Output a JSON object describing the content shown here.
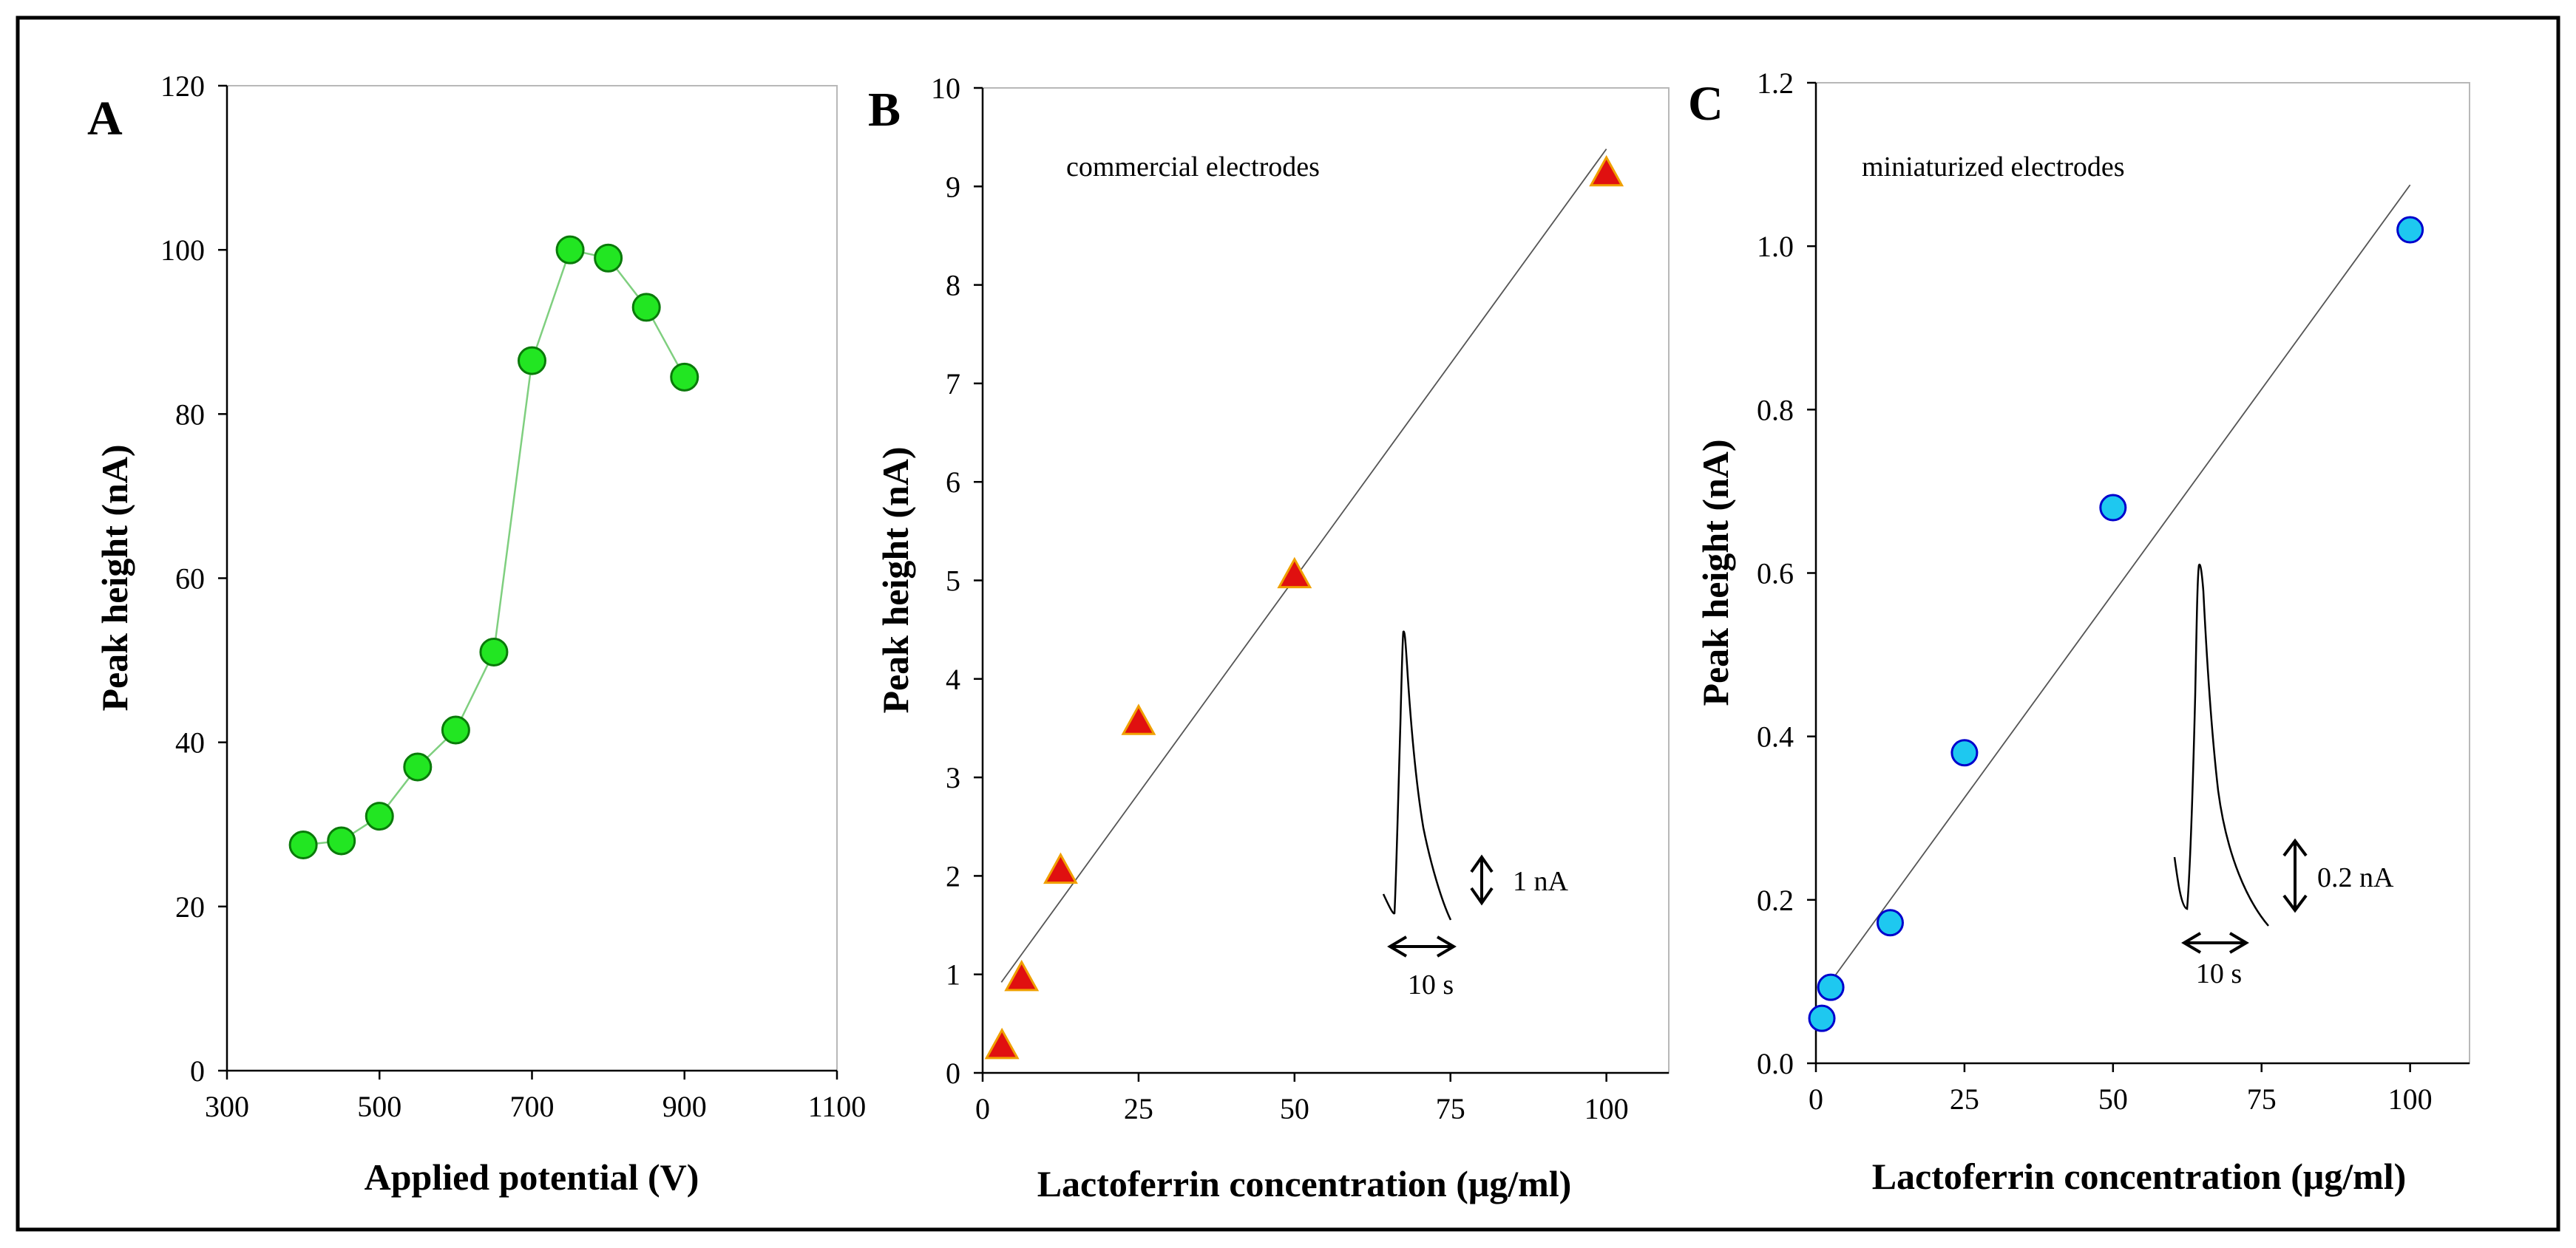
{
  "chart_data": [
    {
      "type": "scatter",
      "panel_label": "A",
      "xlabel": "Applied potential (V)",
      "ylabel": "Peak height (nA)",
      "xlim": [
        300,
        1100
      ],
      "ylim": [
        0,
        120
      ],
      "x_ticks": [
        300,
        500,
        700,
        900,
        1100
      ],
      "y_ticks": [
        0,
        20,
        40,
        60,
        80,
        100,
        120
      ],
      "connect_points": true,
      "grid": false,
      "marker": "circle",
      "marker_color": "#22e622",
      "line_color": "#7fcf7f",
      "series": [
        {
          "x": [
            400,
            450,
            500,
            550,
            600,
            650,
            700,
            750,
            800,
            850,
            900
          ],
          "y": [
            27.5,
            28,
            31,
            37,
            41.5,
            51,
            86.5,
            100,
            99,
            93,
            84.5
          ]
        }
      ]
    },
    {
      "type": "scatter",
      "panel_label": "B",
      "annotation": "commercial electrodes",
      "xlabel": "Lactoferrin concentration (μg/ml)",
      "ylabel": "Peak height (nA)",
      "xlim": [
        0,
        110
      ],
      "ylim": [
        0,
        10
      ],
      "x_ticks": [
        0,
        25,
        50,
        75,
        100
      ],
      "y_ticks": [
        0,
        1,
        2,
        3,
        4,
        5,
        6,
        7,
        8,
        9,
        10
      ],
      "grid": false,
      "marker": "triangle",
      "marker_color": "#e01010",
      "marker_edge": "#f0a000",
      "fit_line": {
        "x": [
          3,
          100
        ],
        "y": [
          0.92,
          9.38
        ]
      },
      "series": [
        {
          "x": [
            3.1,
            6.25,
            12.5,
            25,
            50,
            100
          ],
          "y": [
            0.27,
            0.96,
            2.05,
            3.56,
            5.05,
            9.13
          ]
        }
      ],
      "inset": {
        "current_scale": "1 nA",
        "time_scale": "10 s"
      }
    },
    {
      "type": "scatter",
      "panel_label": "C",
      "annotation": "miniaturized electrodes",
      "xlabel": "Lactoferrin concentration (μg/ml)",
      "ylabel": "Peak height (nA)",
      "xlim": [
        0,
        110
      ],
      "ylim": [
        0,
        1.2
      ],
      "x_ticks": [
        0,
        25,
        50,
        75,
        100
      ],
      "y_ticks": [
        0,
        0.2,
        0.4,
        0.6,
        0.8,
        1.0,
        1.2
      ],
      "y_tick_labels": [
        "0.0",
        "0.2",
        "0.4",
        "0.6",
        "0.8",
        "1.0",
        "1.2"
      ],
      "grid": false,
      "marker": "circle",
      "marker_color": "#1ec8f0",
      "marker_edge": "#0000cc",
      "fit_line": {
        "x": [
          1,
          100
        ],
        "y": [
          0.085,
          1.075
        ]
      },
      "series": [
        {
          "x": [
            1,
            2.5,
            12.5,
            25,
            50,
            100
          ],
          "y": [
            0.055,
            0.093,
            0.172,
            0.38,
            0.68,
            1.02
          ]
        }
      ],
      "inset": {
        "current_scale": "0.2 nA",
        "time_scale": "10 s"
      }
    }
  ]
}
